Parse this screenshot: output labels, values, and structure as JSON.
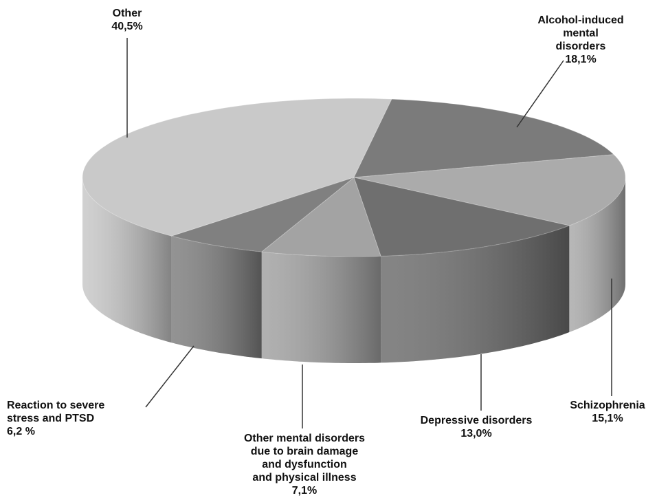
{
  "chart_data": {
    "type": "pie3d",
    "categories": [
      "Other",
      "Alcohol-induced\nmental disorders",
      "Schizophrenia",
      "Depressive disorders",
      "Other mental disorders\ndue to brain damage\nand dysfunction\nand physical illness",
      "Reaction to severe\nstress and PTSD"
    ],
    "values": [
      40.5,
      18.1,
      15.1,
      13.0,
      7.1,
      6.2
    ],
    "value_labels": [
      "40,5%",
      "18,1%",
      "15,1%",
      "13,0%",
      "7,1%",
      "6,2 %"
    ],
    "colors": [
      "#c9c9c9",
      "#7b7b7b",
      "#ababab",
      "#6f6f6f",
      "#a3a3a3",
      "#808080"
    ]
  }
}
